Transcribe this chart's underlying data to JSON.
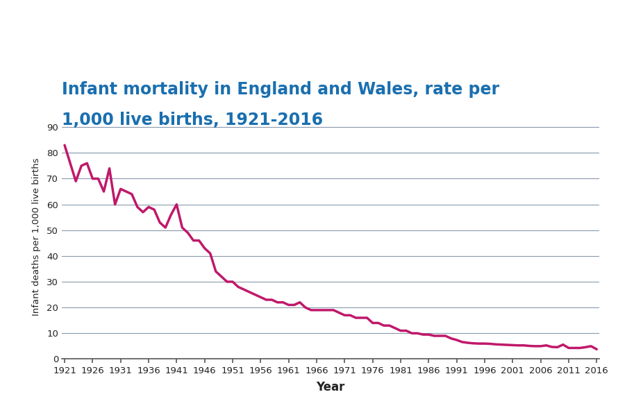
{
  "title_line1": "Infant mortality in England and Wales, rate per",
  "title_line2": "1,000 live births, 1921-2016",
  "title_color": "#1a6faf",
  "xlabel": "Year",
  "ylabel": "Infant deaths per 1,000 live births",
  "line_color": "#c0186a",
  "line_width": 2.5,
  "background_color": "#ffffff",
  "grid_color": "#8899aa",
  "xlim": [
    1921,
    2016
  ],
  "ylim": [
    0,
    95
  ],
  "yticks": [
    0,
    10,
    20,
    30,
    40,
    50,
    60,
    70,
    80,
    90
  ],
  "xticks": [
    1921,
    1926,
    1931,
    1936,
    1941,
    1946,
    1951,
    1956,
    1961,
    1966,
    1971,
    1976,
    1981,
    1986,
    1991,
    1996,
    2001,
    2006,
    2011,
    2016
  ],
  "years": [
    1921,
    1922,
    1923,
    1924,
    1925,
    1926,
    1927,
    1928,
    1929,
    1930,
    1931,
    1932,
    1933,
    1934,
    1935,
    1936,
    1937,
    1938,
    1939,
    1940,
    1941,
    1942,
    1943,
    1944,
    1945,
    1946,
    1947,
    1948,
    1949,
    1950,
    1951,
    1952,
    1953,
    1954,
    1955,
    1956,
    1957,
    1958,
    1959,
    1960,
    1961,
    1962,
    1963,
    1964,
    1965,
    1966,
    1967,
    1968,
    1969,
    1970,
    1971,
    1972,
    1973,
    1974,
    1975,
    1976,
    1977,
    1978,
    1979,
    1980,
    1981,
    1982,
    1983,
    1984,
    1985,
    1986,
    1987,
    1988,
    1989,
    1990,
    1991,
    1992,
    1993,
    1994,
    1995,
    1996,
    1997,
    1998,
    1999,
    2000,
    2001,
    2002,
    2003,
    2004,
    2005,
    2006,
    2007,
    2008,
    2009,
    2010,
    2011,
    2012,
    2013,
    2014,
    2015,
    2016
  ],
  "values": [
    83,
    76,
    69,
    75,
    76,
    70,
    70,
    65,
    74,
    60,
    66,
    65,
    64,
    59,
    57,
    59,
    58,
    53,
    51,
    56,
    60,
    51,
    49,
    46,
    46,
    43,
    41,
    34,
    32,
    30,
    30,
    28,
    27,
    26,
    25,
    24,
    23,
    23,
    22,
    22,
    21,
    21,
    22,
    20,
    19,
    19,
    19,
    19,
    19,
    18,
    17,
    17,
    16,
    16,
    16,
    14,
    14,
    13,
    13,
    12,
    11,
    11,
    10,
    10,
    9.5,
    9.5,
    9,
    9,
    9,
    8,
    7.4,
    6.6,
    6.3,
    6.1,
    6.0,
    6.0,
    5.9,
    5.7,
    5.6,
    5.5,
    5.4,
    5.3,
    5.3,
    5.1,
    5.0,
    5.0,
    5.3,
    4.7,
    4.6,
    5.6,
    4.3,
    4.3,
    4.3,
    4.6,
    5.0,
    3.8
  ]
}
